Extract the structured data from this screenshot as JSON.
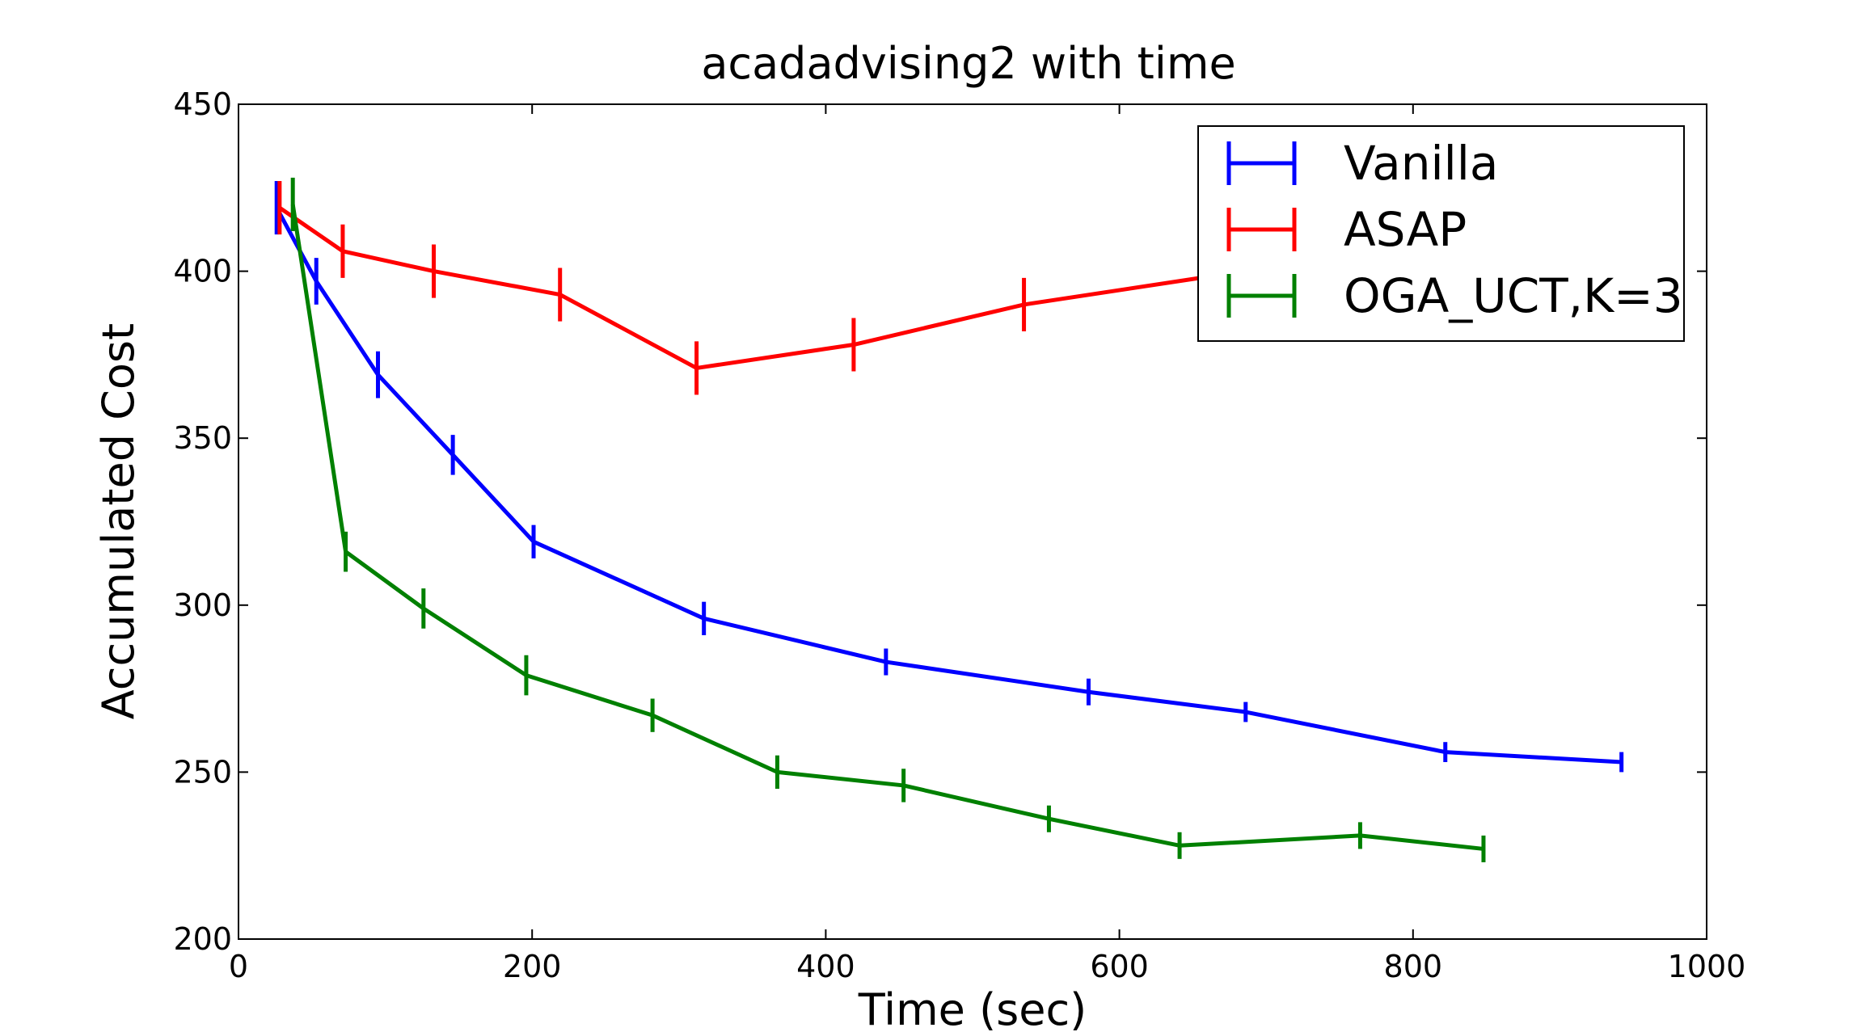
{
  "chart_data": {
    "type": "line",
    "title": "acadadvising2 with time",
    "xlabel": "Time (sec)",
    "ylabel": "Accumulated Cost",
    "xlim": [
      0,
      1000
    ],
    "ylim": [
      200,
      450
    ],
    "xticks": [
      0,
      200,
      400,
      600,
      800,
      1000
    ],
    "yticks": [
      200,
      250,
      300,
      350,
      400,
      450
    ],
    "grid": false,
    "legend_position": "top-right",
    "series": [
      {
        "name": "Vanilla",
        "color": "#0000ff",
        "points": [
          {
            "x": 26,
            "y": 419,
            "err": 8
          },
          {
            "x": 53,
            "y": 397,
            "err": 7
          },
          {
            "x": 95,
            "y": 369,
            "err": 7
          },
          {
            "x": 146,
            "y": 345,
            "err": 6
          },
          {
            "x": 201,
            "y": 319,
            "err": 5
          },
          {
            "x": 317,
            "y": 296,
            "err": 5
          },
          {
            "x": 441,
            "y": 283,
            "err": 4
          },
          {
            "x": 579,
            "y": 274,
            "err": 4
          },
          {
            "x": 686,
            "y": 268,
            "err": 3
          },
          {
            "x": 822,
            "y": 256,
            "err": 3
          },
          {
            "x": 942,
            "y": 253,
            "err": 3
          }
        ]
      },
      {
        "name": "ASAP",
        "color": "#ff0000",
        "points": [
          {
            "x": 28,
            "y": 419,
            "err": 8
          },
          {
            "x": 71,
            "y": 406,
            "err": 8
          },
          {
            "x": 133,
            "y": 400,
            "err": 8
          },
          {
            "x": 219,
            "y": 393,
            "err": 8
          },
          {
            "x": 312,
            "y": 371,
            "err": 8
          },
          {
            "x": 419,
            "y": 378,
            "err": 8
          },
          {
            "x": 535,
            "y": 390,
            "err": 8
          },
          {
            "x": 655,
            "y": 398,
            "err": 8
          }
        ]
      },
      {
        "name": "OGA_UCT,K=3",
        "color": "#008000",
        "points": [
          {
            "x": 37,
            "y": 420,
            "err": 8
          },
          {
            "x": 73,
            "y": 316,
            "err": 6
          },
          {
            "x": 126,
            "y": 299,
            "err": 6
          },
          {
            "x": 196,
            "y": 279,
            "err": 6
          },
          {
            "x": 282,
            "y": 267,
            "err": 5
          },
          {
            "x": 367,
            "y": 250,
            "err": 5
          },
          {
            "x": 453,
            "y": 246,
            "err": 5
          },
          {
            "x": 552,
            "y": 236,
            "err": 4
          },
          {
            "x": 641,
            "y": 228,
            "err": 4
          },
          {
            "x": 764,
            "y": 231,
            "err": 4
          },
          {
            "x": 848,
            "y": 227,
            "err": 4
          }
        ]
      }
    ]
  }
}
